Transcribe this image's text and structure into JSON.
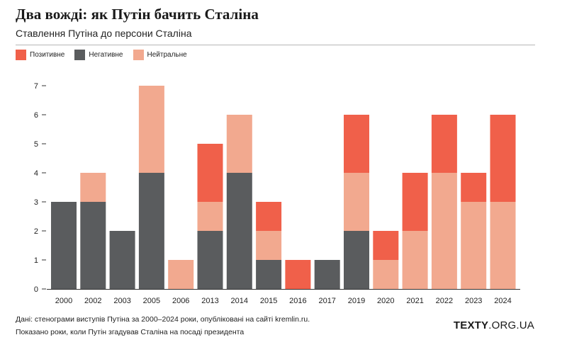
{
  "header": {
    "title": "Два вожді: як Путін бачить Сталіна",
    "subtitle": "Ставлення Путіна до персони Сталіна"
  },
  "legend": [
    {
      "label": "Позитивне",
      "color": "#f0604a"
    },
    {
      "label": "Негативне",
      "color": "#5a5c5e"
    },
    {
      "label": "Нейтральне",
      "color": "#f2a98f"
    }
  ],
  "chart_data": {
    "type": "bar",
    "stacked": true,
    "categories": [
      "2000",
      "2002",
      "2003",
      "2005",
      "2006",
      "2013",
      "2014",
      "2015",
      "2016",
      "2017",
      "2019",
      "2020",
      "2021",
      "2022",
      "2023",
      "2024"
    ],
    "series": [
      {
        "name": "Негативне",
        "color": "#5a5c5e",
        "values": [
          3,
          3,
          2,
          4,
          0,
          2,
          4,
          1,
          0,
          1,
          2,
          0,
          0,
          0,
          0,
          0
        ]
      },
      {
        "name": "Нейтральне",
        "color": "#f2a98f",
        "values": [
          0,
          1,
          0,
          3,
          1,
          1,
          2,
          1,
          0,
          0,
          2,
          1,
          2,
          4,
          3,
          3
        ]
      },
      {
        "name": "Позитивне",
        "color": "#f0604a",
        "values": [
          0,
          0,
          0,
          0,
          0,
          2,
          0,
          1,
          1,
          0,
          2,
          1,
          2,
          2,
          1,
          3
        ]
      }
    ],
    "yticks": [
      0,
      1,
      2,
      3,
      4,
      5,
      6,
      7
    ],
    "ylim": [
      0,
      7
    ],
    "grid": false,
    "legend_position": "top-left"
  },
  "footer": {
    "note1": "Дані: стенограми виступів Путіна за 2000–2024 роки, опубліковані на сайті kremlin.ru.",
    "note2": "Показано роки, коли Путін згадував Сталіна на посаді президента",
    "logo_bold": "TEXTY",
    "logo_rest": ".ORG.UA"
  }
}
